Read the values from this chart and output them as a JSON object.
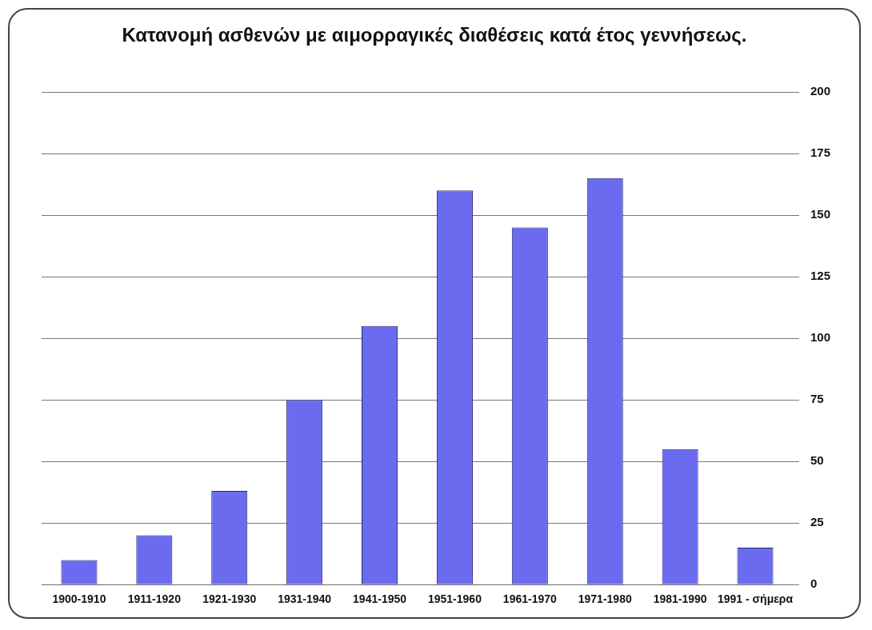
{
  "chart_data": {
    "type": "bar",
    "title": "Κατανομή ασθενών με αιμορραγικές διαθέσεις κατά έτος γεννήσεως.",
    "categories": [
      "1900-1910",
      "1911-1920",
      "1921-1930",
      "1931-1940",
      "1941-1950",
      "1951-1960",
      "1961-1970",
      "1971-1980",
      "1981-1990",
      "1991 - σήμερα"
    ],
    "values": [
      10,
      20,
      38,
      75,
      105,
      160,
      145,
      165,
      55,
      15
    ],
    "color": "#6b6bf0",
    "ylim": [
      0,
      200
    ],
    "yticks": [
      0,
      25,
      50,
      75,
      100,
      125,
      150,
      175,
      200
    ],
    "grid": "y"
  }
}
